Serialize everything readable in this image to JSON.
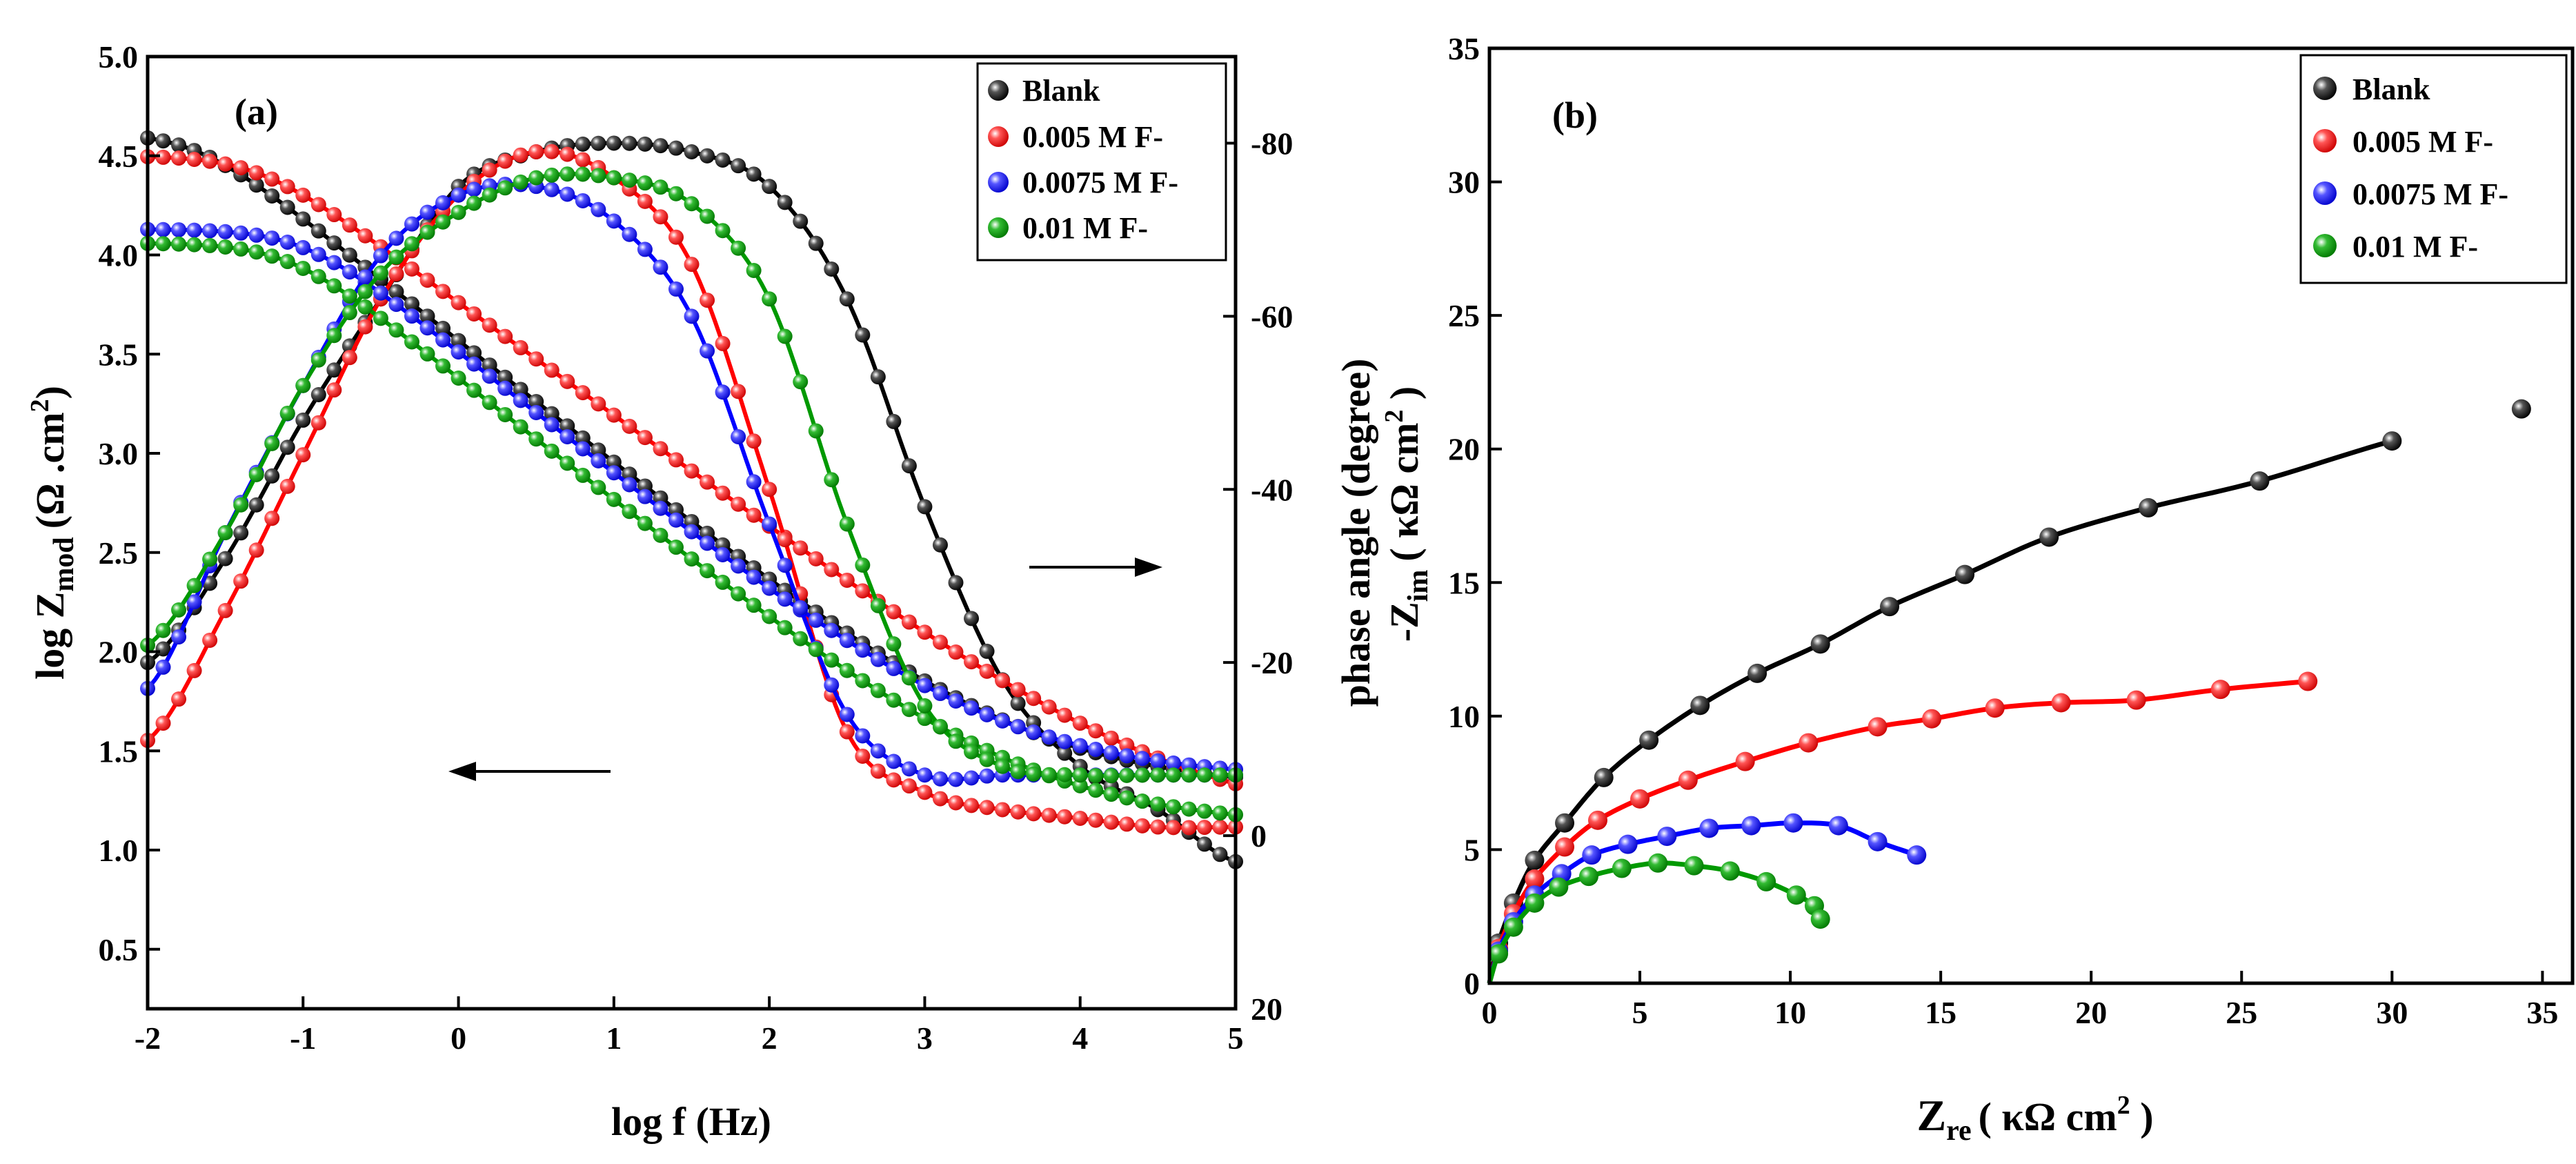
{
  "colors": {
    "Blank": "#000000",
    "0.005 M F-": "#ff0000",
    "0.0075 M F-": "#0000ff",
    "0.01 M F-": "#009900"
  },
  "chart_data": [
    {
      "panel": "(a)",
      "type": "line+scatter",
      "title": "",
      "xlabel": "log f (Hz)",
      "ylabel": "log Z",
      "ylabel_sub": "mod",
      "ylabel_units": "(Ω .cm",
      "ylabel_units_sup": "2",
      "ylabel_units_tail": ")",
      "y2label": "phase angle (degree)",
      "xlim": [
        -2,
        5
      ],
      "ylim": [
        0.2,
        5.0
      ],
      "y2lim": [
        20,
        -90
      ],
      "xticks": [
        "-2",
        "-1",
        "0",
        "1",
        "2",
        "3",
        "4",
        "5"
      ],
      "yticks": [
        "0.5",
        "1.0",
        "1.5",
        "2.0",
        "2.5",
        "3.0",
        "3.5",
        "4.0",
        "4.5",
        "5.0"
      ],
      "y2ticks": [
        "20",
        "0",
        "-20",
        "-40",
        "-60",
        "-80"
      ],
      "legend_position": "top-right",
      "annotations": [
        "arrow left (log Z axis)",
        "arrow right (phase axis)"
      ],
      "series": [
        {
          "name": "Blank",
          "color": "#000000",
          "logZ": {
            "low": 1.31,
            "high": 4.62,
            "fc_log": -1.7,
            "slope": 0.62
          },
          "phase": {
            "x": [
              -2.0,
              -1.5,
              -1.0,
              -0.5,
              0.0,
              0.5,
              1.0,
              1.5,
              2.0,
              2.5,
              3.0,
              3.5,
              4.0,
              4.5,
              5.0
            ],
            "y": [
              -20,
              -32,
              -48,
              -62,
              -75,
              -79,
              -80,
              -79,
              -75,
              -62,
              -38,
              -18,
              -8,
              -3,
              3
            ]
          }
        },
        {
          "name": "0.005 M F-",
          "color": "#ff0000",
          "logZ": {
            "low": 1.13,
            "high": 4.5,
            "fc_log": -1.3,
            "slope": 0.57
          },
          "phase": {
            "x": [
              -2.0,
              -1.5,
              -1.0,
              -0.5,
              0.0,
              0.5,
              1.0,
              1.5,
              2.0,
              2.5,
              3.0,
              3.5,
              4.0,
              4.5,
              5.0
            ],
            "y": [
              -11,
              -26,
              -44,
              -62,
              -74,
              -79,
              -76,
              -66,
              -40,
              -12,
              -5,
              -3,
              -2,
              -1,
              -1
            ]
          }
        },
        {
          "name": "0.0075 M F-",
          "color": "#0000ff",
          "logZ": {
            "low": 1.36,
            "high": 4.13,
            "fc_log": -1.0,
            "slope": 0.62
          },
          "phase": {
            "x": [
              -2.0,
              -1.5,
              -1.0,
              -0.5,
              0.0,
              0.5,
              1.0,
              1.5,
              2.0,
              2.5,
              3.0,
              3.5,
              4.0,
              4.5,
              5.0
            ],
            "y": [
              -17,
              -35,
              -52,
              -67,
              -74,
              -75,
              -71,
              -60,
              -36,
              -14,
              -7,
              -7,
              -7,
              -7,
              -7
            ]
          }
        },
        {
          "name": "0.01 M F-",
          "color": "#009900",
          "logZ": {
            "low": 1.12,
            "high": 4.06,
            "fc_log": -1.1,
            "slope": 0.62
          },
          "phase": {
            "x": [
              -2.0,
              -1.5,
              -1.0,
              -0.5,
              0.0,
              0.5,
              1.0,
              1.5,
              2.0,
              2.5,
              3.0,
              3.5,
              4.0,
              4.5,
              5.0
            ],
            "y": [
              -22,
              -35,
              -52,
              -65,
              -72,
              -76,
              -76,
              -73,
              -62,
              -36,
              -15,
              -8,
              -7,
              -7,
              -7
            ]
          }
        }
      ]
    },
    {
      "panel": "(b)",
      "type": "line+scatter",
      "title": "",
      "xlabel": "Z",
      "xlabel_sub": "re",
      "xlabel_units": "( κΩ  cm",
      "xlabel_units_sup": "2",
      "xlabel_units_tail": " )",
      "ylabel": "-Z",
      "ylabel_sub": "im",
      "ylabel_units": "( κΩ cm",
      "ylabel_units_sup": "2",
      "ylabel_units_tail": " )",
      "xlim": [
        0,
        36
      ],
      "ylim": [
        0,
        35
      ],
      "xticks": [
        "0",
        "5",
        "10",
        "15",
        "20",
        "25",
        "30",
        "35"
      ],
      "yticks": [
        "0",
        "5",
        "10",
        "15",
        "20",
        "25",
        "30",
        "35"
      ],
      "legend_position": "top-right",
      "series": [
        {
          "name": "Blank",
          "color": "#000000",
          "x": [
            0.3,
            0.8,
            1.5,
            2.5,
            3.8,
            5.3,
            7.0,
            8.9,
            11.0,
            13.3,
            15.8,
            18.6,
            21.9,
            25.6,
            30.0,
            34.3
          ],
          "y": [
            1.5,
            3.0,
            4.6,
            6.0,
            7.7,
            9.1,
            10.4,
            11.6,
            12.7,
            14.1,
            15.3,
            16.7,
            17.8,
            18.8,
            20.3,
            21.5
          ]
        },
        {
          "name": "0.005 M F-",
          "color": "#ff0000",
          "x": [
            0.3,
            0.8,
            1.5,
            2.5,
            3.6,
            5.0,
            6.6,
            8.5,
            10.6,
            12.9,
            14.7,
            16.8,
            19.0,
            21.5,
            24.3,
            27.2
          ],
          "y": [
            1.3,
            2.6,
            3.9,
            5.1,
            6.1,
            6.9,
            7.6,
            8.3,
            9.0,
            9.6,
            9.9,
            10.3,
            10.5,
            10.6,
            11.0,
            11.3
          ]
        },
        {
          "name": "0.0075 M F-",
          "color": "#0000ff",
          "x": [
            0.3,
            0.8,
            1.5,
            2.4,
            3.4,
            4.6,
            5.9,
            7.3,
            8.7,
            10.1,
            11.6,
            12.9,
            14.2
          ],
          "y": [
            1.2,
            2.3,
            3.3,
            4.1,
            4.8,
            5.2,
            5.5,
            5.8,
            5.9,
            6.0,
            5.9,
            5.3,
            4.8
          ]
        },
        {
          "name": "0.01 M F-",
          "color": "#009900",
          "x": [
            0.3,
            0.8,
            1.5,
            2.3,
            3.3,
            4.4,
            5.6,
            6.8,
            8.0,
            9.2,
            10.2,
            10.8,
            11.0
          ],
          "y": [
            1.1,
            2.1,
            3.0,
            3.6,
            4.0,
            4.3,
            4.5,
            4.4,
            4.2,
            3.8,
            3.3,
            2.9,
            2.4
          ]
        }
      ]
    }
  ]
}
